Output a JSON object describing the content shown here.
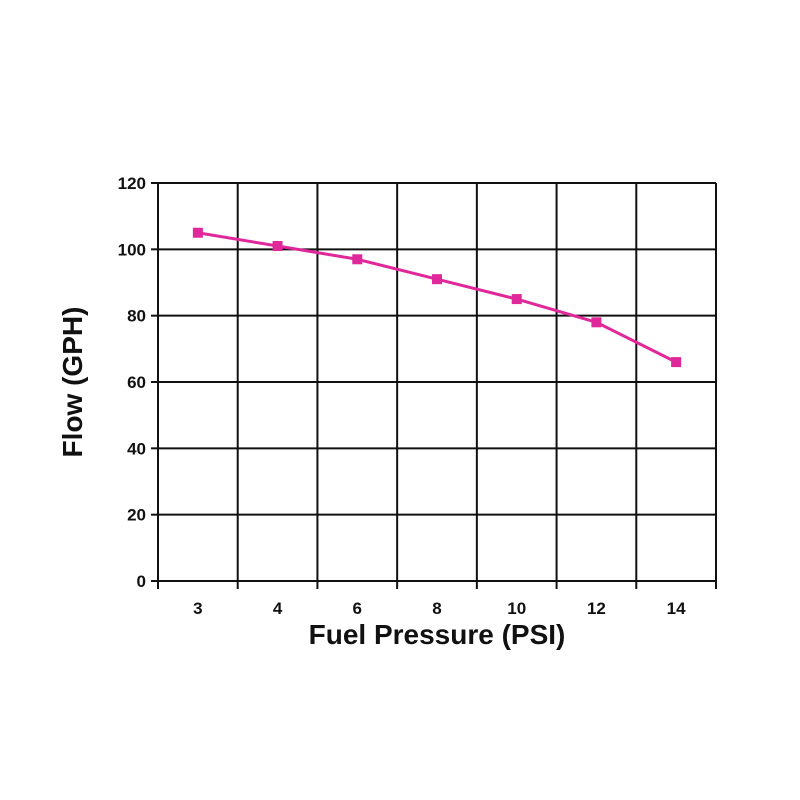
{
  "chart_data": {
    "type": "line",
    "xlabel": "Fuel Pressure (PSI)",
    "ylabel": "Flow (GPH)",
    "categories": [
      "3",
      "4",
      "6",
      "8",
      "10",
      "12",
      "14"
    ],
    "series": [
      {
        "values": [
          105,
          101,
          97,
          91,
          85,
          78,
          66
        ]
      }
    ],
    "yticks": [
      "0",
      "20",
      "40",
      "60",
      "80",
      "100",
      "120"
    ],
    "ylim": [
      0,
      120
    ],
    "grid": true,
    "legend": "none",
    "colors": {
      "line": "#e0289a",
      "marker": "#e0289a",
      "grid": "#111111"
    }
  }
}
